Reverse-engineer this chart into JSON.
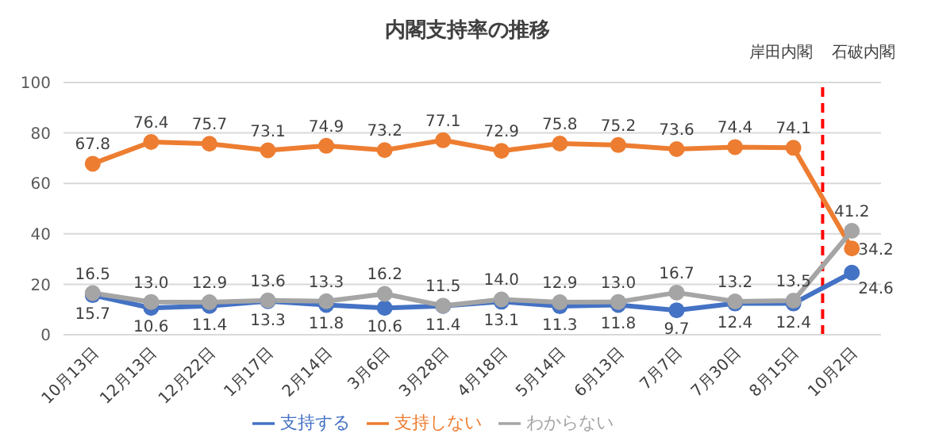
{
  "chart_data": {
    "type": "line",
    "title": "内閣支持率の推移",
    "categories": [
      "10月13日",
      "12月13日",
      "12月22日",
      "1月17日",
      "2月14日",
      "3月6日",
      "3月28日",
      "4月18日",
      "5月14日",
      "6月13日",
      "7月7日",
      "7月30日",
      "8月15日",
      "10月2日"
    ],
    "series": [
      {
        "name": "支持する",
        "color": "#4472c4",
        "values": [
          15.7,
          10.6,
          11.4,
          13.3,
          11.8,
          10.6,
          11.4,
          13.1,
          11.3,
          11.8,
          9.7,
          12.4,
          12.4,
          24.6
        ],
        "value_labels": [
          "15.7",
          "10.6",
          "11.4",
          "13.3",
          "11.8",
          "10.6",
          "11.4",
          "13.1",
          "11.3",
          "11.8",
          "9.7",
          "12.4",
          "12.4",
          "24.6"
        ]
      },
      {
        "name": "支持しない",
        "color": "#ed7d31",
        "values": [
          67.8,
          76.4,
          75.7,
          73.1,
          74.9,
          73.2,
          77.1,
          72.9,
          75.8,
          75.2,
          73.6,
          74.4,
          74.1,
          34.2
        ],
        "value_labels": [
          "67.8",
          "76.4",
          "75.7",
          "73.1",
          "74.9",
          "73.2",
          "77.1",
          "72.9",
          "75.8",
          "75.2",
          "73.6",
          "74.4",
          "74.1",
          "34.2"
        ]
      },
      {
        "name": "わからない",
        "color": "#a5a5a5",
        "values": [
          16.5,
          13.0,
          12.9,
          13.6,
          13.3,
          16.2,
          11.5,
          14.0,
          12.9,
          13.0,
          16.7,
          13.2,
          13.5,
          41.2
        ],
        "value_labels": [
          "16.5",
          "13.0",
          "12.9",
          "13.6",
          "13.3",
          "16.2",
          "11.5",
          "14.0",
          "12.9",
          "13.0",
          "16.7",
          "13.2",
          "13.5",
          "41.2"
        ]
      }
    ],
    "ylim": [
      0,
      100
    ],
    "yticks": [
      0,
      20,
      40,
      60,
      80,
      100
    ],
    "grid": "y",
    "legend": "bottom",
    "marker": "circle",
    "line_style": "solid",
    "ref_lines": [
      {
        "axis": "x",
        "value": "10月2日",
        "color": "#ff0000",
        "line_style": "dashed"
      }
    ],
    "annotations": [
      "岸田内閣",
      "石破内閣"
    ]
  }
}
